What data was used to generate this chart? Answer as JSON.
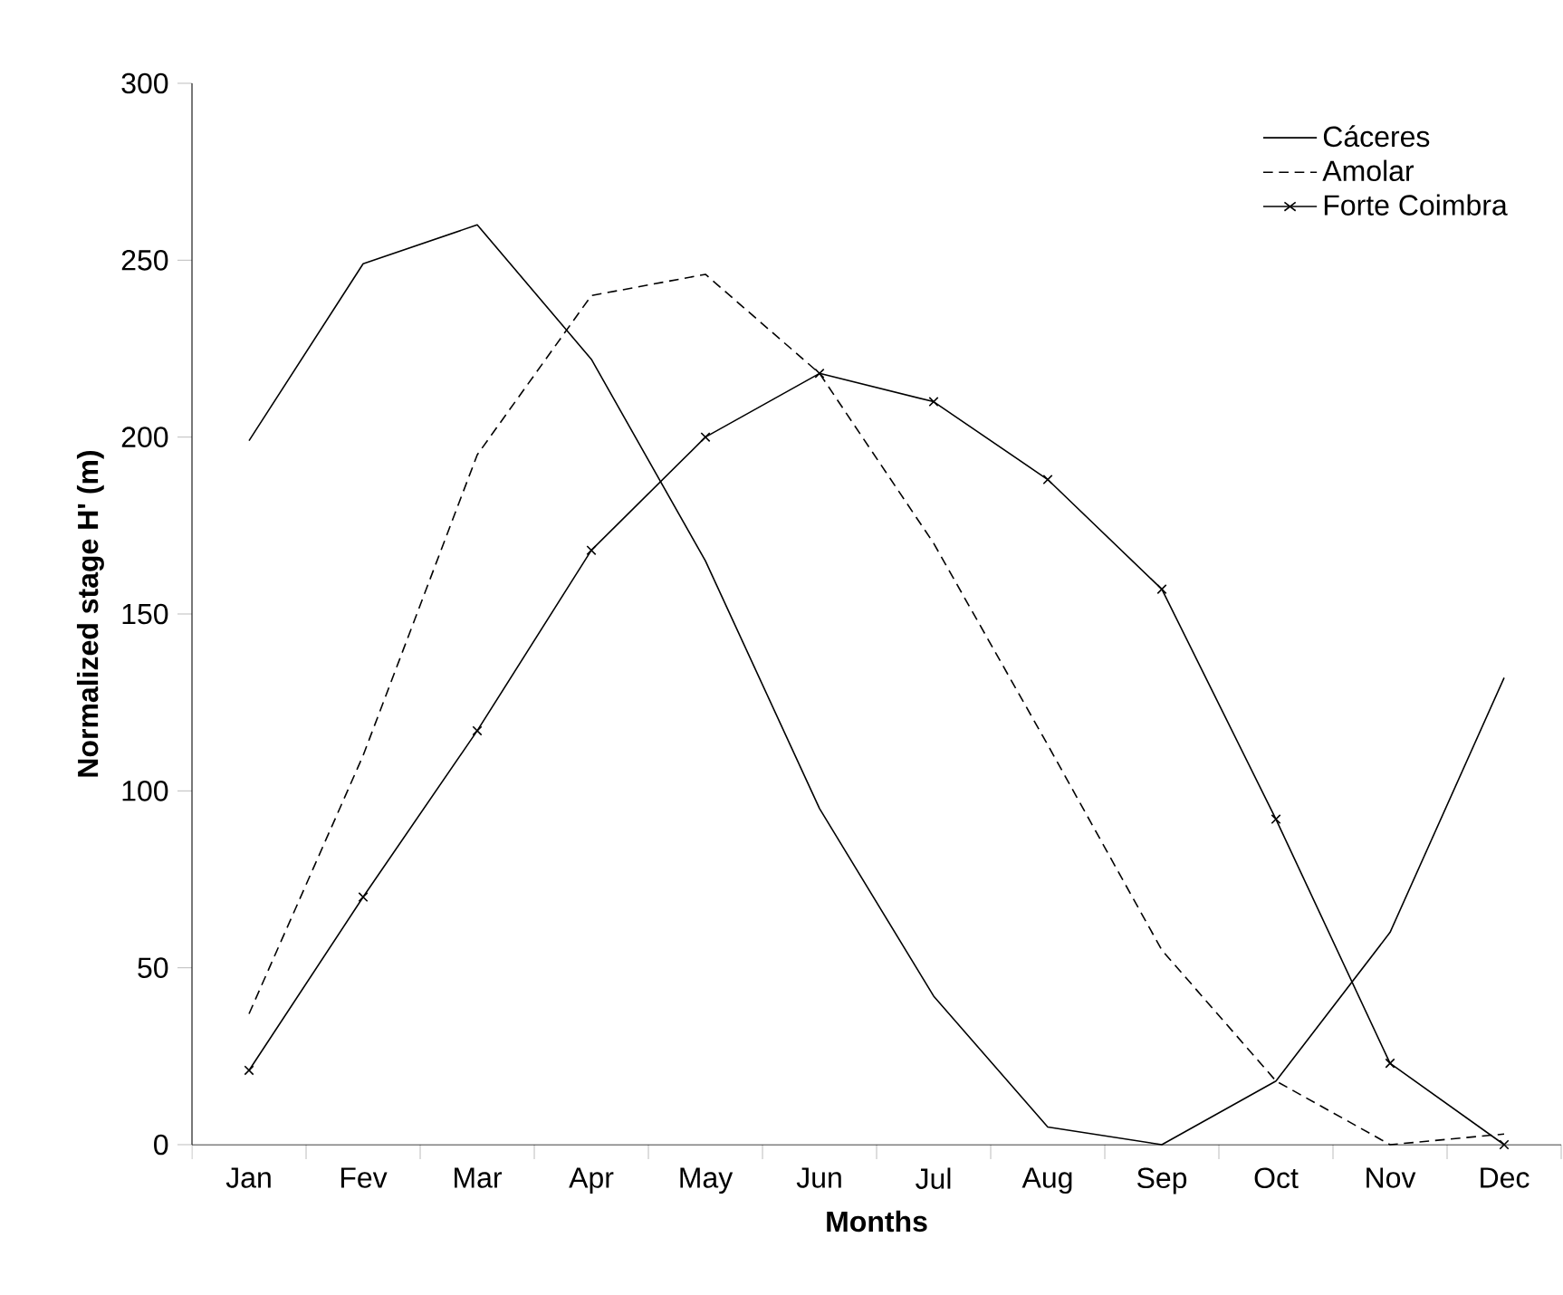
{
  "chart_data": {
    "type": "line",
    "xlabel": "Months",
    "ylabel": "Normalized stage H' (m)",
    "categories": [
      "Jan",
      "Fev",
      "Mar",
      "Apr",
      "May",
      "Jun",
      "Jul",
      "Aug",
      "Sep",
      "Oct",
      "Nov",
      "Dec"
    ],
    "series": [
      {
        "name": "Cáceres",
        "color": "#000000",
        "line_style": "solid",
        "marker": "none",
        "values": [
          199,
          249,
          260,
          222,
          165,
          95,
          42,
          5,
          0,
          18,
          60,
          132
        ]
      },
      {
        "name": "Amolar",
        "color": "#000000",
        "line_style": "dashed",
        "marker": "none",
        "values": [
          37,
          110,
          195,
          240,
          246,
          218,
          170,
          113,
          55,
          18,
          0,
          3
        ]
      },
      {
        "name": "Forte Coimbra",
        "color": "#000000",
        "line_style": "solid",
        "marker": "cross",
        "values": [
          21,
          70,
          117,
          168,
          200,
          218,
          210,
          188,
          157,
          92,
          23,
          0
        ]
      }
    ],
    "ylim": [
      0,
      300
    ],
    "yticks": [
      0,
      50,
      100,
      150,
      200,
      250,
      300
    ],
    "grid": false,
    "legend": "top right"
  }
}
